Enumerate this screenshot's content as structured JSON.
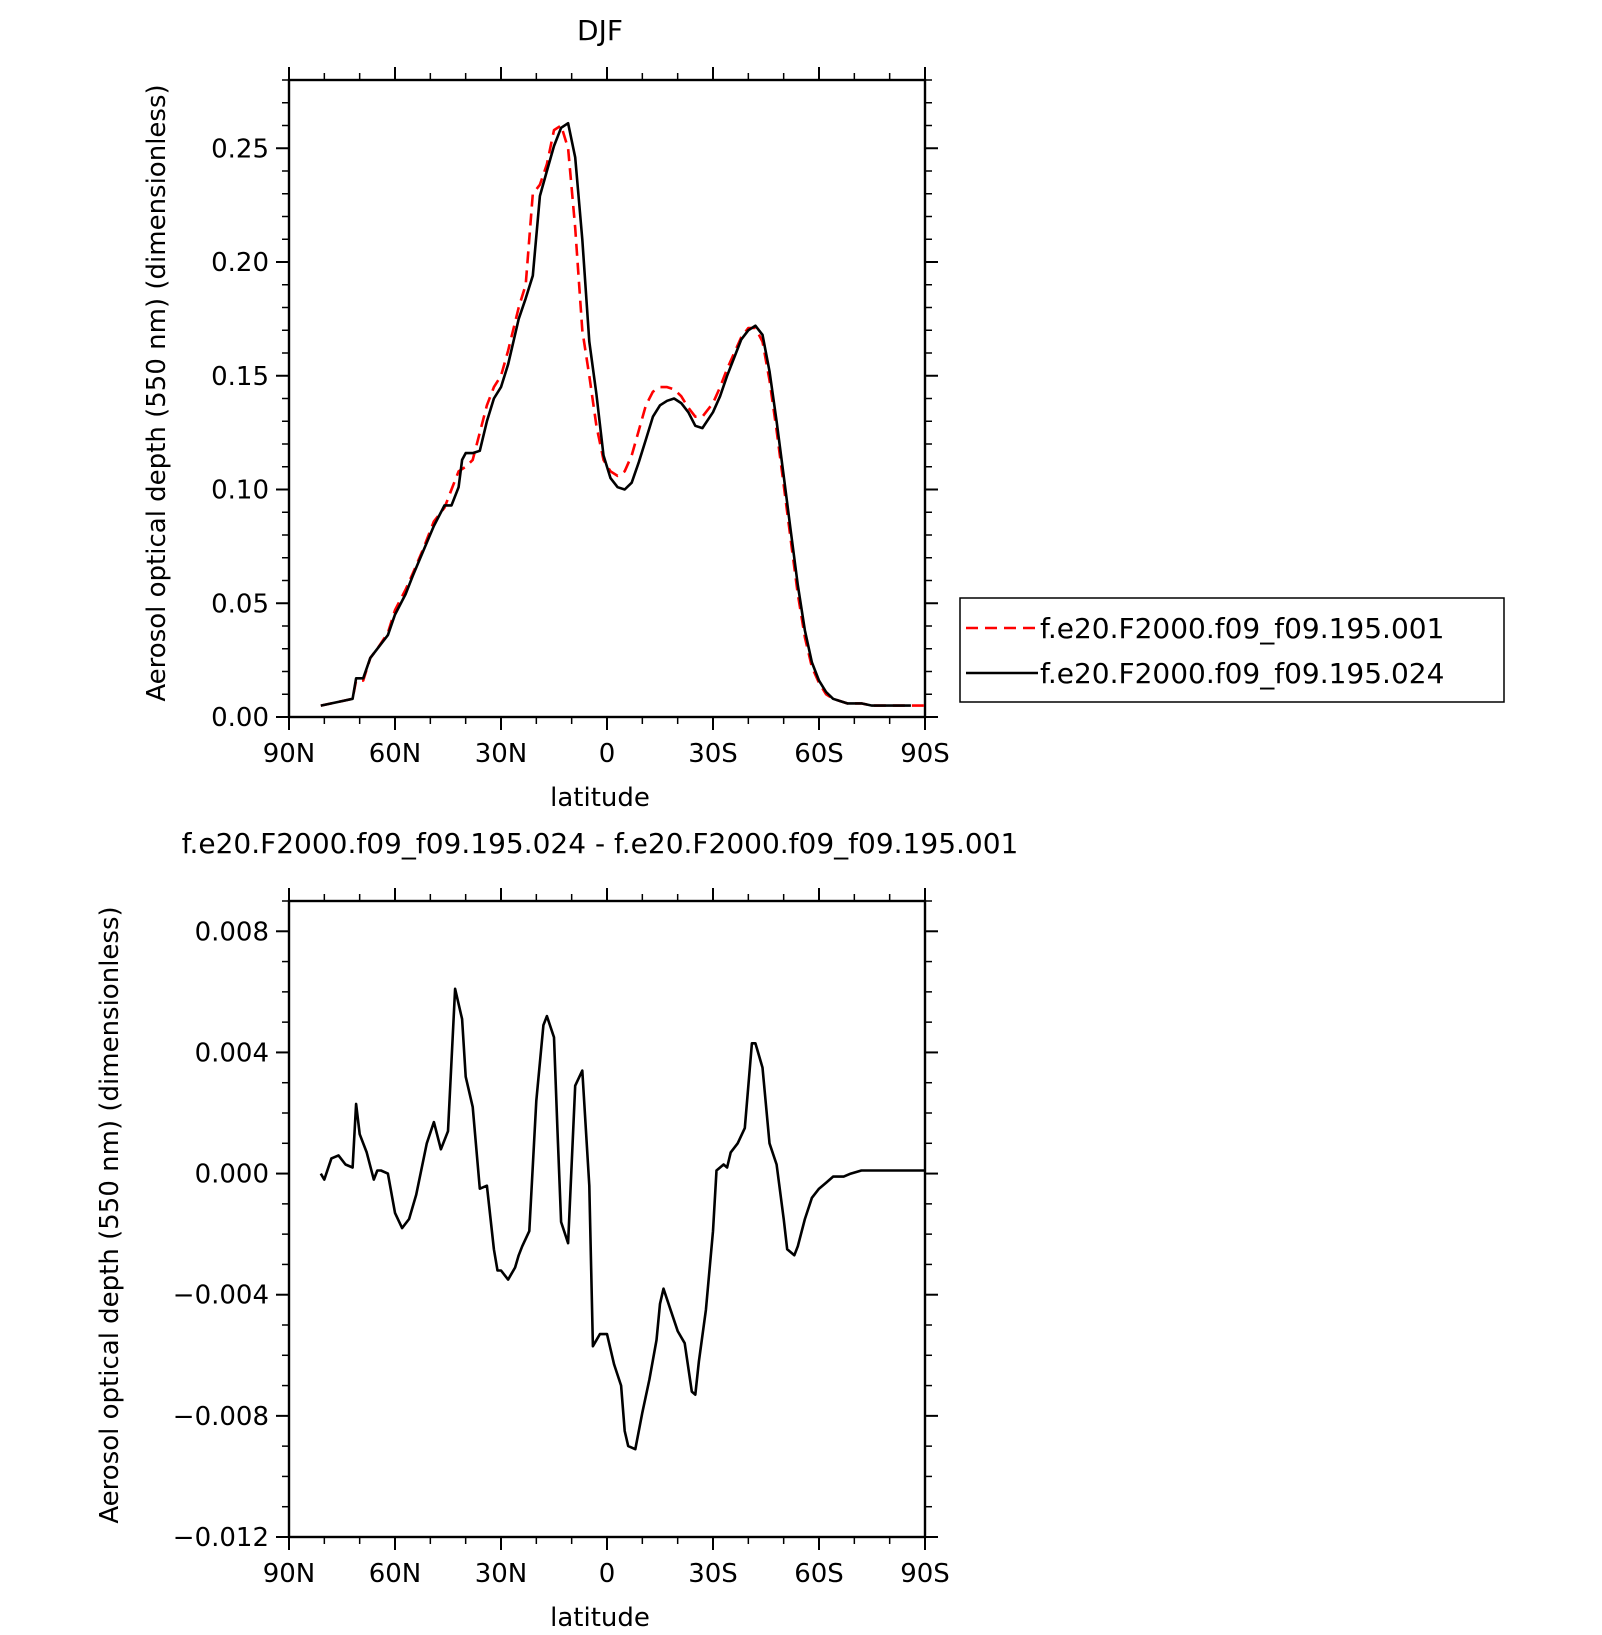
{
  "chart_data": [
    {
      "type": "line",
      "title": "DJF",
      "xlabel": "latitude",
      "ylabel": "Aerosol optical depth (550 nm) (dimensionless)",
      "xlim": [
        "90N",
        "90S"
      ],
      "ylim": [
        0,
        0.28
      ],
      "x_ticks": [
        "90N",
        "60N",
        "30N",
        "0",
        "30S",
        "60S",
        "90S"
      ],
      "y_ticks": [
        "0.00",
        "0.05",
        "0.10",
        "0.15",
        "0.20",
        "0.25"
      ],
      "y_tick_values": [
        0,
        0.05,
        0.1,
        0.15,
        0.2,
        0.25
      ],
      "legend_position": "right",
      "series": [
        {
          "name": "f.e20.F2000.f09_f09.195.001",
          "color": "#ff0000",
          "dash": "dashed",
          "lat": [
            81,
            78,
            75,
            72,
            71,
            70,
            69,
            67,
            65,
            62,
            60,
            57,
            55,
            52,
            49,
            46,
            44,
            42,
            40,
            38,
            36,
            34,
            32,
            30,
            28,
            25,
            23,
            21,
            19,
            17,
            15,
            13,
            11,
            9,
            7,
            5,
            3,
            1,
            -1,
            -3,
            -5,
            -7,
            -9,
            -11,
            -13,
            -15,
            -17,
            -19,
            -21,
            -23,
            -25,
            -27,
            -30,
            -32,
            -34,
            -36,
            -38,
            -40,
            -42,
            -44,
            -46,
            -48,
            -50,
            -52,
            -54,
            -56,
            -58,
            -60,
            -62,
            -64,
            -66,
            -68,
            -70,
            -72,
            -75,
            -78,
            -82,
            -86,
            -90
          ],
          "values": [
            0.005,
            0.006,
            0.007,
            0.008,
            0.016,
            0.016,
            0.016,
            0.026,
            0.03,
            0.037,
            0.047,
            0.056,
            0.063,
            0.074,
            0.086,
            0.092,
            0.1,
            0.108,
            0.11,
            0.113,
            0.125,
            0.137,
            0.145,
            0.15,
            0.161,
            0.18,
            0.19,
            0.23,
            0.234,
            0.243,
            0.258,
            0.26,
            0.25,
            0.215,
            0.17,
            0.15,
            0.128,
            0.113,
            0.108,
            0.106,
            0.108,
            0.115,
            0.126,
            0.137,
            0.143,
            0.145,
            0.145,
            0.144,
            0.141,
            0.136,
            0.132,
            0.132,
            0.138,
            0.145,
            0.153,
            0.16,
            0.167,
            0.171,
            0.171,
            0.165,
            0.148,
            0.126,
            0.102,
            0.078,
            0.054,
            0.035,
            0.022,
            0.015,
            0.01,
            0.008,
            0.007,
            0.006,
            0.006,
            0.006,
            0.005,
            0.005,
            0.005,
            0.005,
            0.005
          ]
        },
        {
          "name": "f.e20.F2000.f09_f09.195.024",
          "color": "#000000",
          "dash": "solid",
          "lat": [
            81,
            78,
            75,
            72,
            71,
            70,
            69,
            67,
            65,
            62,
            60,
            57,
            55,
            52,
            49,
            46,
            44,
            42,
            41,
            40,
            38,
            36,
            34,
            32,
            30,
            28,
            25,
            23,
            21,
            19,
            17,
            15,
            13,
            11,
            9,
            7,
            5,
            3,
            1,
            -1,
            -3,
            -5,
            -7,
            -9,
            -11,
            -13,
            -15,
            -17,
            -19,
            -21,
            -23,
            -25,
            -27,
            -30,
            -32,
            -34,
            -36,
            -38,
            -40,
            -42,
            -44,
            -46,
            -48,
            -50,
            -52,
            -54,
            -56,
            -58,
            -60,
            -62,
            -64,
            -66,
            -68,
            -70,
            -72,
            -75,
            -78,
            -82,
            -86,
            -90
          ],
          "values": [
            0.005,
            0.006,
            0.007,
            0.008,
            0.017,
            0.017,
            0.017,
            0.026,
            0.03,
            0.036,
            0.045,
            0.054,
            0.062,
            0.073,
            0.084,
            0.093,
            0.093,
            0.101,
            0.113,
            0.116,
            0.116,
            0.117,
            0.13,
            0.14,
            0.145,
            0.155,
            0.175,
            0.184,
            0.194,
            0.229,
            0.24,
            0.251,
            0.259,
            0.261,
            0.246,
            0.21,
            0.165,
            0.142,
            0.115,
            0.105,
            0.101,
            0.1,
            0.103,
            0.112,
            0.122,
            0.132,
            0.137,
            0.139,
            0.14,
            0.138,
            0.134,
            0.128,
            0.127,
            0.134,
            0.141,
            0.15,
            0.158,
            0.166,
            0.17,
            0.172,
            0.168,
            0.152,
            0.13,
            0.106,
            0.082,
            0.058,
            0.038,
            0.024,
            0.016,
            0.011,
            0.008,
            0.007,
            0.006,
            0.006,
            0.006,
            0.005,
            0.005,
            0.005,
            0.005
          ]
        }
      ]
    },
    {
      "type": "line",
      "title": "f.e20.F2000.f09_f09.195.024 - f.e20.F2000.f09_f09.195.001",
      "xlabel": "latitude",
      "ylabel": "Aerosol optical depth (550 nm) (dimensionless)",
      "xlim": [
        "90N",
        "90S"
      ],
      "ylim": [
        -0.012,
        0.009
      ],
      "x_ticks": [
        "90N",
        "60N",
        "30N",
        "0",
        "30S",
        "60S",
        "90S"
      ],
      "y_ticks": [
        "0.008",
        "0.004",
        "0.000",
        "−0.004",
        "−0.008",
        "−0.012"
      ],
      "y_tick_values": [
        0.008,
        0.004,
        0.0,
        -0.004,
        -0.008,
        -0.012
      ],
      "series": [
        {
          "color": "#000000",
          "dash": "solid",
          "lat": [
            81,
            80,
            78,
            76,
            74,
            72,
            71,
            70,
            68,
            66,
            65,
            64,
            62,
            60,
            58,
            56,
            54,
            51,
            49,
            47,
            45,
            43,
            41,
            40,
            38,
            36,
            34,
            32,
            31,
            30,
            28,
            26,
            25,
            24,
            22,
            20,
            18,
            17,
            15,
            14,
            13,
            11,
            9,
            7,
            5,
            4,
            2,
            0,
            -2,
            -4,
            -5,
            -6,
            -8,
            -10,
            -12,
            -14,
            -15,
            -16,
            -18,
            -20,
            -22,
            -24,
            -25,
            -26,
            -28,
            -30,
            -31,
            -33,
            -34,
            -35,
            -37,
            -39,
            -41,
            -42,
            -44,
            -46,
            -48,
            -50,
            -51,
            -53,
            -54,
            -56,
            -58,
            -60,
            -62,
            -64,
            -65,
            -67,
            -69,
            -72,
            -75,
            -78,
            -81,
            -84,
            -86,
            -90
          ],
          "values": [
            0.0,
            -0.0002,
            0.0005,
            0.0006,
            0.0003,
            0.0002,
            0.0023,
            0.0013,
            0.0007,
            -0.0002,
            0.0001,
            0.0001,
            0.0,
            -0.0013,
            -0.0018,
            -0.0015,
            -0.0007,
            0.001,
            0.0017,
            0.0008,
            0.0014,
            0.0061,
            0.0051,
            0.0032,
            0.0022,
            -0.0005,
            -0.0004,
            -0.0025,
            -0.0032,
            -0.0032,
            -0.0035,
            -0.0031,
            -0.0027,
            -0.0024,
            -0.0019,
            0.0024,
            0.0049,
            0.0052,
            0.0045,
            0.0014,
            -0.0016,
            -0.0023,
            0.0029,
            0.0034,
            -0.0004,
            -0.0057,
            -0.0053,
            -0.0053,
            -0.0063,
            -0.007,
            -0.0085,
            -0.009,
            -0.0091,
            -0.0079,
            -0.0068,
            -0.0055,
            -0.0043,
            -0.0038,
            -0.0045,
            -0.0052,
            -0.0056,
            -0.0072,
            -0.0073,
            -0.0062,
            -0.0045,
            -0.0019,
            0.0001,
            0.0003,
            0.0002,
            0.0007,
            0.001,
            0.0015,
            0.0043,
            0.0043,
            0.0035,
            0.001,
            0.0003,
            -0.0015,
            -0.0025,
            -0.0027,
            -0.0024,
            -0.0015,
            -0.0008,
            -0.0005,
            -0.0003,
            -0.0001,
            -0.0001,
            -0.0001,
            0.0,
            0.0001,
            0.0001,
            0.0001,
            0.0001,
            0.0001,
            0.0001,
            0.0001
          ]
        }
      ]
    }
  ]
}
